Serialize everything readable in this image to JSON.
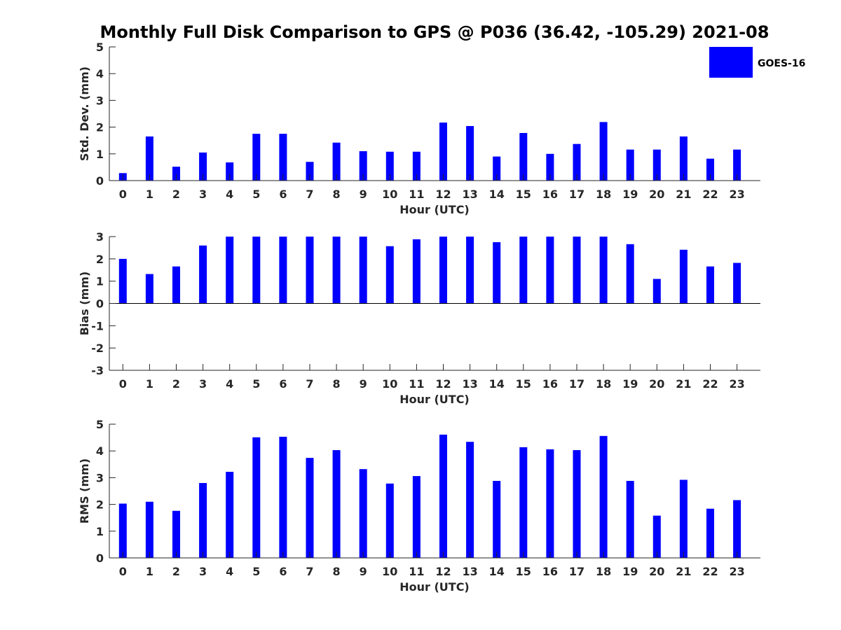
{
  "title": "Monthly Full Disk Comparison to GPS @ P036 (36.42, -105.29) 2021-08",
  "legend": {
    "label": "GOES-16",
    "color": "#0000ff",
    "placement": "top-right"
  },
  "chart_data": [
    {
      "type": "bar",
      "xlabel": "Hour (UTC)",
      "ylabel": "Std. Dev. (mm)",
      "ylim": [
        0,
        5
      ],
      "yticks": [
        "0",
        "1",
        "2",
        "3",
        "4",
        "5"
      ],
      "categories": [
        "0",
        "1",
        "2",
        "3",
        "4",
        "5",
        "6",
        "7",
        "8",
        "9",
        "10",
        "11",
        "12",
        "13",
        "14",
        "15",
        "16",
        "17",
        "18",
        "19",
        "20",
        "21",
        "22",
        "23"
      ],
      "series": [
        {
          "name": "GOES-16",
          "values": [
            0.28,
            1.65,
            0.52,
            1.05,
            0.68,
            1.75,
            1.75,
            0.7,
            1.42,
            1.1,
            1.08,
            1.08,
            2.17,
            2.04,
            0.9,
            1.78,
            1.0,
            1.37,
            2.19,
            1.16,
            1.16,
            1.65,
            0.82,
            1.16
          ]
        }
      ]
    },
    {
      "type": "bar",
      "xlabel": "Hour (UTC)",
      "ylabel": "Bias (mm)",
      "ylim": [
        -3,
        3
      ],
      "yticks": [
        "-3",
        "-2",
        "-1",
        "0",
        "1",
        "2",
        "3"
      ],
      "categories": [
        "0",
        "1",
        "2",
        "3",
        "4",
        "5",
        "6",
        "7",
        "8",
        "9",
        "10",
        "11",
        "12",
        "13",
        "14",
        "15",
        "16",
        "17",
        "18",
        "19",
        "20",
        "21",
        "22",
        "23"
      ],
      "series": [
        {
          "name": "GOES-16",
          "values": [
            2.0,
            1.32,
            1.66,
            2.6,
            3.0,
            3.0,
            3.0,
            3.0,
            3.0,
            3.0,
            2.57,
            2.88,
            3.0,
            3.0,
            2.75,
            3.0,
            3.0,
            3.0,
            3.0,
            2.66,
            1.1,
            2.41,
            1.66,
            1.82
          ]
        }
      ]
    },
    {
      "type": "bar",
      "xlabel": "Hour (UTC)",
      "ylabel": "RMS (mm)",
      "ylim": [
        0,
        5
      ],
      "yticks": [
        "0",
        "1",
        "2",
        "3",
        "4",
        "5"
      ],
      "categories": [
        "0",
        "1",
        "2",
        "3",
        "4",
        "5",
        "6",
        "7",
        "8",
        "9",
        "10",
        "11",
        "12",
        "13",
        "14",
        "15",
        "16",
        "17",
        "18",
        "19",
        "20",
        "21",
        "22",
        "23"
      ],
      "series": [
        {
          "name": "GOES-16",
          "values": [
            2.03,
            2.1,
            1.76,
            2.8,
            3.22,
            4.51,
            4.53,
            3.74,
            4.03,
            3.32,
            2.78,
            3.06,
            4.61,
            4.34,
            2.88,
            4.14,
            4.06,
            4.03,
            4.56,
            2.88,
            1.58,
            2.92,
            1.84,
            2.16
          ]
        }
      ]
    }
  ]
}
